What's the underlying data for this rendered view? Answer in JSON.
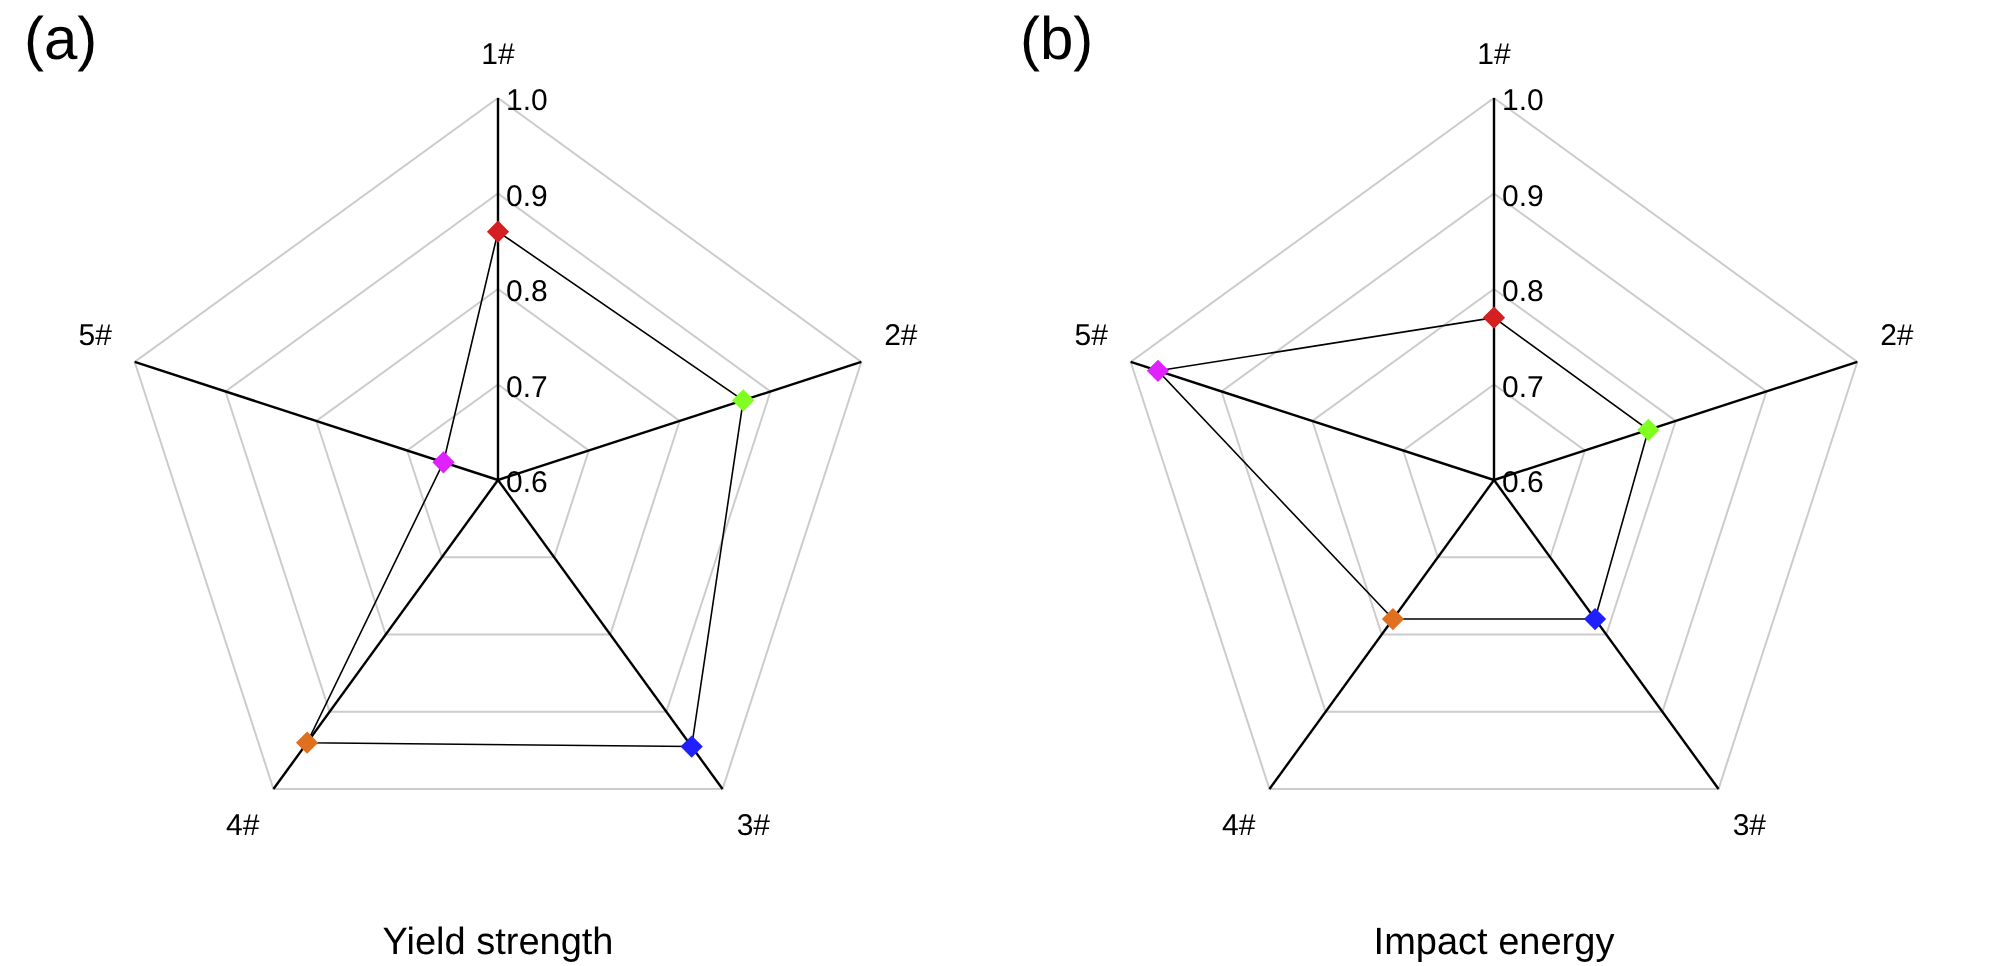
{
  "chart_data": [
    {
      "type": "radar",
      "title": "Yield strength",
      "annotations": [
        "(a)"
      ],
      "categories": [
        "1#",
        "2#",
        "3#",
        "4#",
        "5#"
      ],
      "series": [
        {
          "color": "#000000",
          "colors": [
            "#d42020",
            "#80ff20",
            "#2020ff",
            "#e07020",
            "#e020ff"
          ],
          "values": [
            0.86,
            0.87,
            0.945,
            0.94,
            0.66
          ]
        }
      ],
      "ylim": [
        0.6,
        1.0
      ],
      "yticks": [
        0.6,
        0.7,
        0.8,
        0.9,
        {
          "value": 1.0,
          "label": "1.0"
        }
      ],
      "grid": true,
      "legend": false,
      "marker": "diamond"
    },
    {
      "type": "radar",
      "title": "Impact energy",
      "annotations": [
        "(b)"
      ],
      "categories": [
        "1#",
        "2#",
        "3#",
        "4#",
        "5#"
      ],
      "series": [
        {
          "color": "#000000",
          "colors": [
            "#d42020",
            "#80ff20",
            "#2020ff",
            "#e07020",
            "#e020ff"
          ],
          "values": [
            0.77,
            0.77,
            0.78,
            0.78,
            0.97
          ]
        }
      ],
      "ylim": [
        0.6,
        1.0
      ],
      "yticks": [
        0.6,
        0.7,
        0.8,
        0.9,
        {
          "value": 1.0,
          "label": "1.0"
        }
      ],
      "grid": true,
      "legend": false,
      "marker": "diamond"
    }
  ]
}
